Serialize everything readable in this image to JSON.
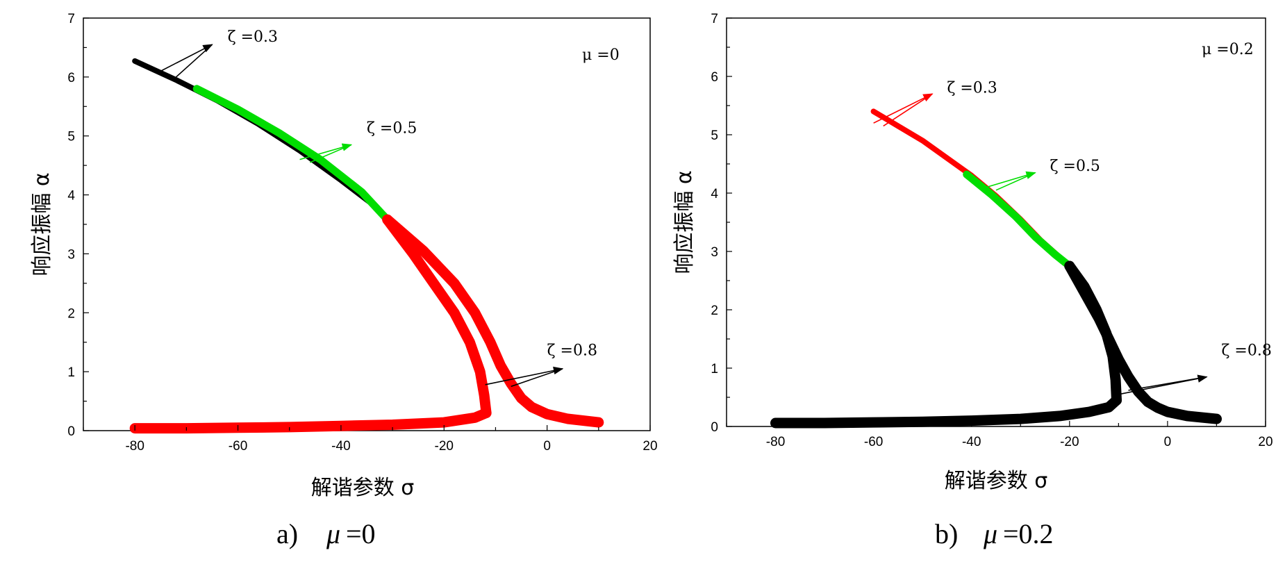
{
  "chart_data": [
    {
      "type": "line",
      "panel_caption": "a)",
      "caption_symbol": "μ",
      "caption_value": "=0",
      "param_label": "μ =0",
      "xlabel": "解谐参数 σ",
      "ylabel": "响应振幅 α",
      "xlim": [
        -90,
        20
      ],
      "ylim": [
        0,
        7
      ],
      "xticks": [
        -80,
        -60,
        -40,
        -20,
        0,
        20
      ],
      "yticks": [
        0,
        1,
        2,
        3,
        4,
        5,
        6,
        7
      ],
      "series": [
        {
          "name": "ζ =0.3",
          "color": "#000000",
          "segments": [
            {
              "x": [
                -80,
                -72,
                -64,
                -56,
                -48,
                -40,
                -34,
                -31
              ],
              "y": [
                6.27,
                5.95,
                5.6,
                5.2,
                4.75,
                4.25,
                3.85,
                3.58
              ],
              "stability": "stable"
            },
            {
              "x": [
                -31,
                -26,
                -22,
                -18,
                -15,
                -13,
                -12.2,
                -11.8
              ],
              "y": [
                3.58,
                3.0,
                2.5,
                2.0,
                1.5,
                1.0,
                0.6,
                0.3
              ],
              "stability": "unstable"
            },
            {
              "x": [
                -11.8,
                -14,
                -20,
                -30,
                -40,
                -50,
                -60,
                -70,
                -80
              ],
              "y": [
                0.3,
                0.22,
                0.14,
                0.1,
                0.08,
                0.06,
                0.05,
                0.04,
                0.04
              ],
              "stability": "stable"
            }
          ]
        },
        {
          "name": "ζ =0.5",
          "color": "#00dd00",
          "segments": [
            {
              "x": [
                -68,
                -60,
                -52,
                -44,
                -36,
                -31
              ],
              "y": [
                5.8,
                5.45,
                5.05,
                4.6,
                4.05,
                3.58
              ],
              "stability": "stable"
            }
          ]
        },
        {
          "name": "ζ =0.8",
          "color": "#ff0000",
          "segments": [
            {
              "x": [
                -31,
                -24,
                -18,
                -14,
                -11,
                -9,
                -7,
                -5,
                -3,
                0,
                4,
                10
              ],
              "y": [
                3.58,
                3.05,
                2.5,
                2.0,
                1.5,
                1.1,
                0.8,
                0.55,
                0.4,
                0.28,
                0.2,
                0.14
              ],
              "stability": "stable"
            },
            {
              "x": [
                -31,
                -26,
                -22,
                -18,
                -15,
                -13,
                -12.2,
                -11.8
              ],
              "y": [
                3.58,
                3.0,
                2.5,
                2.0,
                1.5,
                1.0,
                0.6,
                0.3
              ],
              "stability": "stable"
            },
            {
              "x": [
                -11.8,
                -14,
                -20,
                -30,
                -40,
                -50,
                -60,
                -70,
                -80
              ],
              "y": [
                0.3,
                0.22,
                0.14,
                0.1,
                0.08,
                0.06,
                0.05,
                0.04,
                0.04
              ],
              "stability": "stable"
            }
          ]
        }
      ],
      "annotations": [
        {
          "text": "ζ =0.3",
          "color": "#000000",
          "target": [
            -75,
            6.1
          ],
          "target2": [
            -72,
            6.0
          ],
          "tip": [
            -65,
            6.55
          ],
          "label_at": [
            -62,
            6.6
          ]
        },
        {
          "text": "ζ =0.5",
          "color": "#00dd00",
          "target": [
            -48,
            4.6
          ],
          "target2": [
            -46,
            4.55
          ],
          "tip": [
            -38,
            4.85
          ],
          "label_at": [
            -35,
            5.05
          ]
        },
        {
          "text": "ζ =0.8",
          "color": "#000000",
          "target": [
            -12,
            0.78
          ],
          "target2": [
            -7,
            0.75
          ],
          "tip": [
            3,
            1.05
          ],
          "label_at": [
            0,
            1.28
          ]
        }
      ]
    },
    {
      "type": "line",
      "panel_caption": "b)",
      "caption_symbol": "μ",
      "caption_value": "=0.2",
      "param_label": "μ =0.2",
      "xlabel": "解谐参数 σ",
      "ylabel": "响应振幅 α",
      "xlim": [
        -90,
        20
      ],
      "ylim": [
        0,
        7
      ],
      "xticks": [
        -80,
        -60,
        -40,
        -20,
        0,
        20
      ],
      "yticks": [
        0,
        1,
        2,
        3,
        4,
        5,
        6,
        7
      ],
      "series": [
        {
          "name": "ζ =0.3",
          "color": "#ff0000",
          "segments": [
            {
              "x": [
                -60,
                -55,
                -50,
                -45,
                -40,
                -35,
                -30,
                -26,
                -22,
                -20
              ],
              "y": [
                5.4,
                5.15,
                4.9,
                4.6,
                4.3,
                3.95,
                3.55,
                3.2,
                2.9,
                2.75
              ],
              "stability": "stable"
            }
          ]
        },
        {
          "name": "ζ =0.5",
          "color": "#00dd00",
          "segments": [
            {
              "x": [
                -41,
                -36,
                -31,
                -27,
                -23,
                -20
              ],
              "y": [
                4.32,
                3.98,
                3.6,
                3.25,
                2.95,
                2.75
              ],
              "stability": "stable"
            }
          ]
        },
        {
          "name": "ζ =0.8",
          "color": "#000000",
          "segments": [
            {
              "x": [
                -20,
                -17,
                -14,
                -12,
                -10,
                -8,
                -6,
                -4,
                -2,
                0,
                4,
                10
              ],
              "y": [
                2.75,
                2.3,
                1.85,
                1.5,
                1.15,
                0.85,
                0.6,
                0.42,
                0.32,
                0.25,
                0.18,
                0.13
              ],
              "stability": "stable"
            },
            {
              "x": [
                -20,
                -17,
                -14.5,
                -12.5,
                -11.2,
                -10.6,
                -10.4
              ],
              "y": [
                2.75,
                2.4,
                2.0,
                1.6,
                1.2,
                0.8,
                0.45
              ],
              "stability": "stable"
            },
            {
              "x": [
                -10.4,
                -12,
                -16,
                -22,
                -30,
                -40,
                -50,
                -60,
                -70,
                -80
              ],
              "y": [
                0.45,
                0.33,
                0.25,
                0.18,
                0.13,
                0.1,
                0.08,
                0.07,
                0.06,
                0.06
              ],
              "stability": "stable"
            }
          ]
        }
      ],
      "annotations": [
        {
          "text": "ζ =0.3",
          "color": "#ff0000",
          "target": [
            -60,
            5.2
          ],
          "target2": [
            -58,
            5.15
          ],
          "tip": [
            -48,
            5.7
          ],
          "label_at": [
            -45,
            5.72
          ]
        },
        {
          "text": "ζ =0.5",
          "color": "#00dd00",
          "target": [
            -37,
            4.1
          ],
          "target2": [
            -35,
            4.05
          ],
          "tip": [
            -27,
            4.35
          ],
          "label_at": [
            -24,
            4.38
          ]
        },
        {
          "text": "ζ =0.8",
          "color": "#000000",
          "target": [
            -10,
            0.55
          ],
          "target2": [
            -8,
            0.62
          ],
          "tip": [
            8,
            0.85
          ],
          "label_at": [
            11,
            1.22
          ]
        }
      ]
    }
  ]
}
